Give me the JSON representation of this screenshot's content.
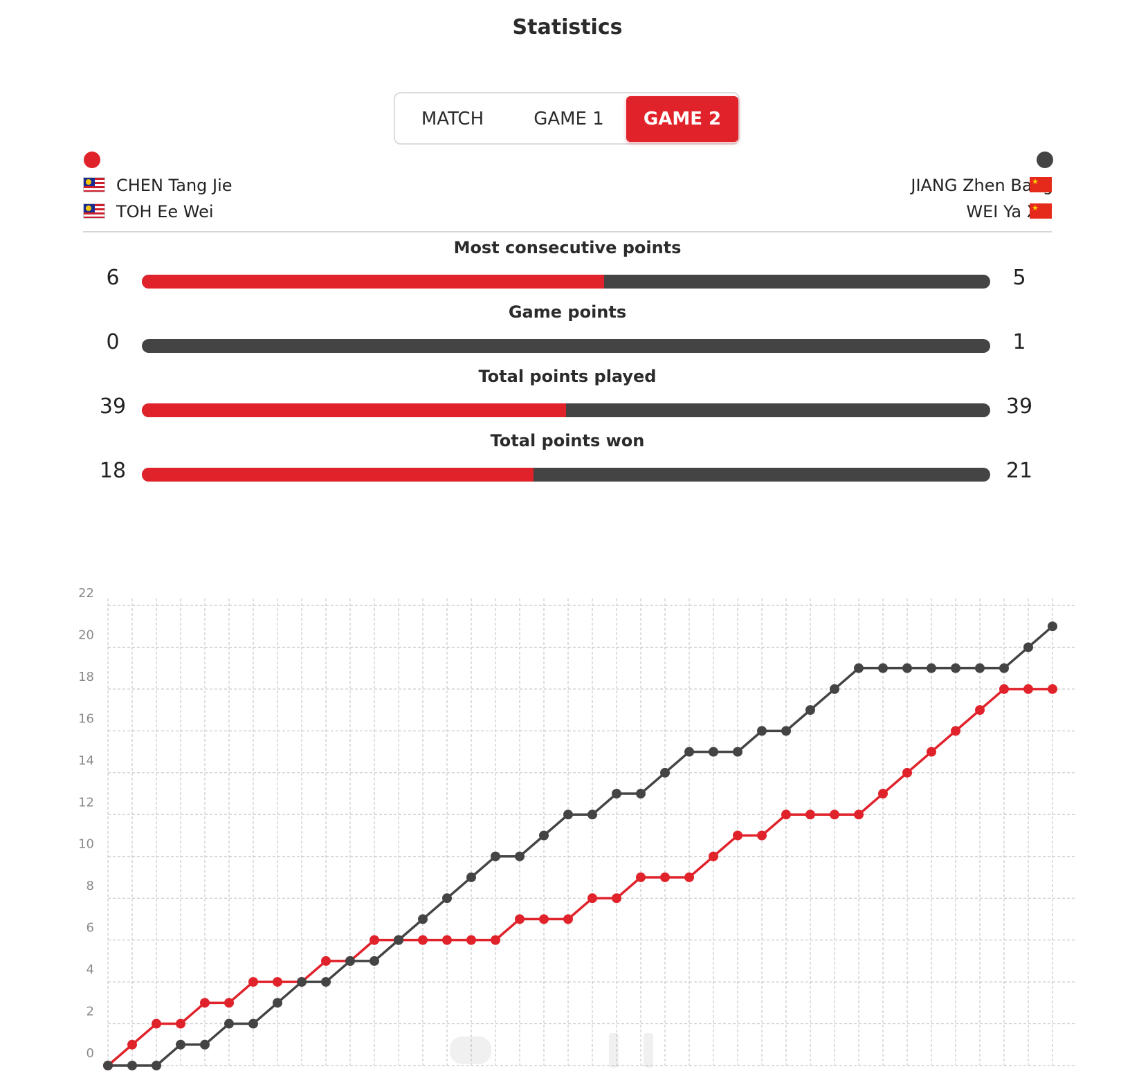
{
  "title": "Statistics",
  "tabs": [
    {
      "label": "MATCH",
      "active": false
    },
    {
      "label": "GAME 1",
      "active": false
    },
    {
      "label": "GAME 2",
      "active": true
    }
  ],
  "colors": {
    "team_left": "#e0222b",
    "team_right": "#444444",
    "accent": "#e0222b"
  },
  "team_left": {
    "players": [
      {
        "name": "CHEN Tang Jie",
        "flag": "malaysia-flag-icon"
      },
      {
        "name": "TOH Ee Wei",
        "flag": "malaysia-flag-icon"
      }
    ]
  },
  "team_right": {
    "players": [
      {
        "name": "JIANG Zhen Bang",
        "flag": "china-flag-icon"
      },
      {
        "name": "WEI Ya Xin",
        "flag": "china-flag-icon"
      }
    ]
  },
  "stats": [
    {
      "label": "Most consecutive points",
      "left": "6",
      "right": "5",
      "left_share": 0.545
    },
    {
      "label": "Game points",
      "left": "0",
      "right": "1",
      "left_share": 0.0
    },
    {
      "label": "Total points played",
      "left": "39",
      "right": "39",
      "left_share": 0.5
    },
    {
      "label": "Total points won",
      "left": "18",
      "right": "21",
      "left_share": 0.4615
    }
  ],
  "chart_data": {
    "type": "line",
    "ylim": [
      0,
      22
    ],
    "yticks": [
      "0",
      "2",
      "4",
      "6",
      "8",
      "10",
      "12",
      "14",
      "16",
      "18",
      "20",
      "22"
    ],
    "x": [
      0,
      1,
      2,
      3,
      4,
      5,
      6,
      7,
      8,
      9,
      10,
      11,
      12,
      13,
      14,
      15,
      16,
      17,
      18,
      19,
      20,
      21,
      22,
      23,
      24,
      25,
      26,
      27,
      28,
      29,
      30,
      31,
      32,
      33,
      34,
      35,
      36,
      37,
      38,
      39
    ],
    "grid": true,
    "series": [
      {
        "team": "left",
        "color": "#e0222b",
        "values": [
          0,
          1,
          2,
          2,
          3,
          3,
          4,
          4,
          4,
          5,
          5,
          6,
          6,
          6,
          6,
          6,
          6,
          7,
          7,
          7,
          8,
          8,
          9,
          9,
          9,
          10,
          11,
          11,
          12,
          12,
          12,
          12,
          13,
          14,
          15,
          16,
          17,
          18,
          18,
          18
        ]
      },
      {
        "team": "right",
        "color": "#444444",
        "values": [
          0,
          0,
          0,
          1,
          1,
          2,
          2,
          3,
          4,
          4,
          5,
          5,
          6,
          7,
          8,
          9,
          10,
          10,
          11,
          12,
          12,
          13,
          13,
          14,
          15,
          15,
          15,
          16,
          16,
          17,
          18,
          19,
          19,
          19,
          19,
          19,
          19,
          19,
          20,
          21
        ]
      }
    ]
  }
}
